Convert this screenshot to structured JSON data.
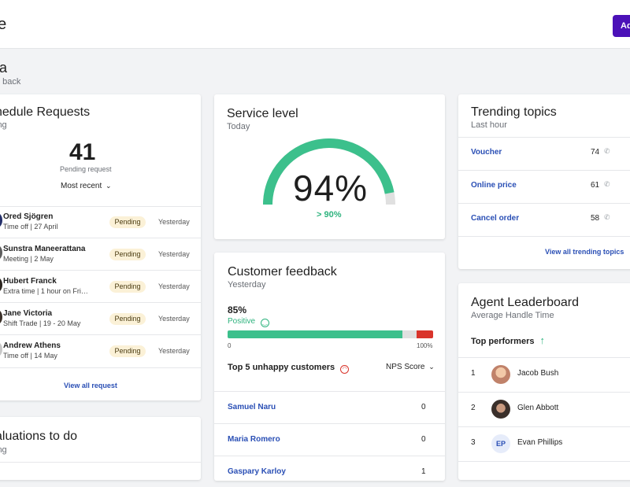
{
  "header": {
    "title": "ne",
    "action_button": "Ad"
  },
  "greeting": {
    "name": "fia",
    "subtitle": "e back"
  },
  "schedule": {
    "title": "hedule Requests",
    "subtitle": "ing",
    "pending_count": "41",
    "pending_label": "Pending request",
    "sort_label": "Most recent",
    "requests": [
      {
        "name": "Ored Sjögren",
        "detail": "Time off | 27 April",
        "status": "Pending",
        "date": "Yesterday"
      },
      {
        "name": "Sunstra Maneerattana",
        "detail": "Meeting | 2 May",
        "status": "Pending",
        "date": "Yesterday"
      },
      {
        "name": "Hubert Franck",
        "detail": "Extra time | 1 hour on Frid...",
        "status": "Pending",
        "date": "Yesterday"
      },
      {
        "name": "Jane Victoria",
        "detail": "Shift Trade | 19 - 20 May",
        "status": "Pending",
        "date": "Yesterday"
      },
      {
        "name": "Andrew Athens",
        "detail": "Time off | 14 May",
        "status": "Pending",
        "date": "Yesterday"
      }
    ],
    "view_all": "View all request"
  },
  "service": {
    "title": "Service level",
    "subtitle": "Today",
    "value": "94%",
    "target": "> 90%",
    "level": 0.94
  },
  "trending": {
    "title": "Trending topics",
    "subtitle": "Last hour",
    "topics": [
      {
        "name": "Voucher",
        "count": "74"
      },
      {
        "name": "Online price",
        "count": "61"
      },
      {
        "name": "Cancel order",
        "count": "58"
      }
    ],
    "view_all": "View all trending topics"
  },
  "feedback": {
    "title": "Customer feedback",
    "subtitle": "Yesterday",
    "percent": "85%",
    "positive_label": "Positive",
    "bar": {
      "positive": 0.85,
      "neutral": 0.07,
      "negative": 0.08
    },
    "scale_min": "0",
    "scale_max": "100%",
    "unhappy_title": "Top 5 unhappy customers",
    "nps_label": "NPS Score",
    "customers": [
      {
        "name": "Samuel Naru",
        "score": "0"
      },
      {
        "name": "Maria Romero",
        "score": "0"
      },
      {
        "name": "Gaspary Karloy",
        "score": "1"
      }
    ]
  },
  "leaderboard": {
    "title": "Agent Leaderboard",
    "subtitle": "Average Handle Time",
    "top_label": "Top performers",
    "agents": [
      {
        "rank": "1",
        "name": "Jacob Bush",
        "initials": ""
      },
      {
        "rank": "2",
        "name": "Glen Abbott",
        "initials": ""
      },
      {
        "rank": "3",
        "name": "Evan Phillips",
        "initials": "EP"
      }
    ]
  },
  "evaluations": {
    "title": "aluations to do",
    "subtitle": "ing"
  },
  "colors": {
    "brand": "#4b11b8",
    "positive": "#3cc08c",
    "neutral": "#e0e0e0",
    "negative": "#d9342b",
    "link": "#2a4fb5",
    "pending_bg": "#fbf1d7"
  }
}
